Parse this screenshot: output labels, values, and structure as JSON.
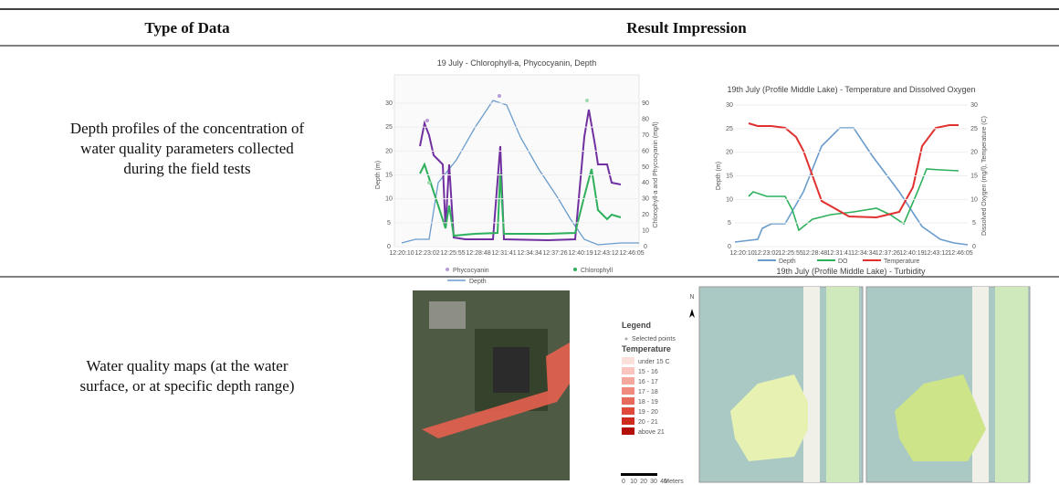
{
  "header": {
    "col1": "Type of Data",
    "col2": "Result Impression"
  },
  "rows": [
    {
      "type_lines": [
        "Depth profiles of the concentration of",
        "water quality parameters collected",
        "during the field tests"
      ]
    },
    {
      "type_lines": [
        "Water quality maps (at the water",
        "surface, or at specific depth range)"
      ]
    }
  ],
  "figure1": {
    "title": "19 July - Chlorophyll-a, Phycocyanin, Depth",
    "ylabel": "Depth (m)",
    "y2label": "Chlorophyll-a and Phycocyanin (mg/l)",
    "yticks": [
      0,
      5,
      10,
      15,
      20,
      25,
      30
    ],
    "y2ticks": [
      0,
      10,
      20,
      30,
      40,
      50,
      60,
      70,
      80,
      90
    ],
    "xticks": [
      "12:20:10",
      "12:23:02",
      "12:25:55",
      "12:28:48",
      "12:31:41",
      "12:34:34",
      "12:37:26",
      "12:40:19",
      "12:43:12",
      "12:46:05"
    ],
    "legend": [
      "Phycocyanin",
      "Chlorophyll",
      "Depth"
    ]
  },
  "figure2": {
    "title": "19th July (Profile Middle Lake) - Temperature and Dissolved Oxygen",
    "ylabel": "Depth (m)",
    "y2label": "Dissolved Oxygen (mg/l), Temperature (C)",
    "yticks": [
      0,
      5,
      10,
      15,
      20,
      25,
      30
    ],
    "y2ticks": [
      0,
      5,
      10,
      15,
      20,
      25,
      30
    ],
    "xticks": [
      "12:20:10",
      "12:23:02",
      "12:25:55",
      "12:28:48",
      "12:31:41",
      "12:34:34",
      "12:37:26",
      "12:40:19",
      "12:43:12",
      "12:46:05"
    ],
    "legend": [
      "Depth",
      "DO",
      "Temperature"
    ],
    "caption": "19th July (Profile Middle Lake) - Turbidity"
  },
  "map": {
    "legend_title": "Legend",
    "selected": "Selected points",
    "variable": "Temperature",
    "north": "N",
    "classes": [
      "under 15 C",
      "15 - 16",
      "16 - 17",
      "17 - 18",
      "18 - 19",
      "19 - 20",
      "20 - 21",
      "above 21"
    ],
    "scale": [
      "0",
      "10",
      "20",
      "30",
      "40",
      "Meters"
    ]
  }
}
